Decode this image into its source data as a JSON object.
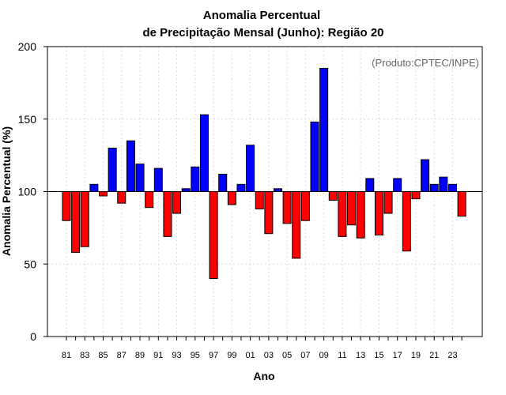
{
  "chart_data": {
    "type": "bar",
    "title": "Anomalia Percentual",
    "subtitle": "de Precipitação Mensal (Junho): Região 20",
    "xlabel": "Ano",
    "ylabel": "Anomalia Percentual (%)",
    "credit": "(Produto:CPTEC/INPE)",
    "ylim": [
      0,
      200
    ],
    "yticks": [
      0,
      50,
      100,
      150,
      200
    ],
    "baseline": 100,
    "grid": true,
    "colors": {
      "above": "#0000ff",
      "below": "#ff0000",
      "edge": "#000000"
    },
    "xtick_labels": [
      "81",
      "83",
      "85",
      "87",
      "89",
      "91",
      "93",
      "95",
      "97",
      "99",
      "01",
      "03",
      "05",
      "07",
      "09",
      "11",
      "13",
      "15",
      "17",
      "19",
      "21",
      "23"
    ],
    "categories": [
      "1981",
      "1982",
      "1983",
      "1984",
      "1985",
      "1986",
      "1987",
      "1988",
      "1989",
      "1990",
      "1991",
      "1992",
      "1993",
      "1994",
      "1995",
      "1996",
      "1997",
      "1998",
      "1999",
      "2000",
      "2001",
      "2002",
      "2003",
      "2004",
      "2005",
      "2006",
      "2007",
      "2008",
      "2009",
      "2010",
      "2011",
      "2012",
      "2013",
      "2014",
      "2015",
      "2016",
      "2017",
      "2018",
      "2019",
      "2020",
      "2021",
      "2022",
      "2023",
      "2024"
    ],
    "values": [
      80,
      58,
      62,
      105,
      97,
      130,
      92,
      135,
      119,
      89,
      116,
      69,
      85,
      102,
      117,
      153,
      40,
      112,
      91,
      105,
      132,
      88,
      71,
      102,
      78,
      54,
      80,
      148,
      185,
      94,
      69,
      77,
      68,
      109,
      70,
      85,
      109,
      59,
      95,
      122,
      105,
      110,
      105,
      83
    ]
  }
}
